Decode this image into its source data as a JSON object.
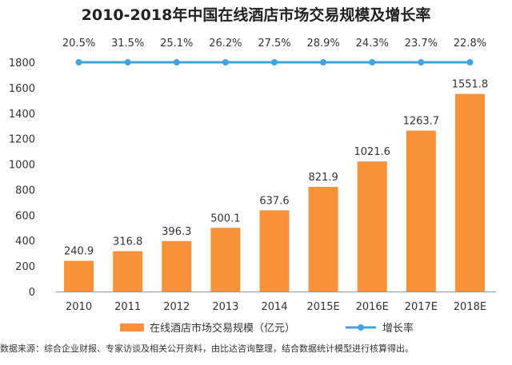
{
  "title": "2010-2018年中国在线酒店市场交易规模及增长率",
  "source": "数据来源：综合企业财报、专家访谈及相关公开资料，由比达咨询整理，结合数据统计模型进行核算得出。",
  "colors": {
    "bar": "#f7923a",
    "line": "#3fa4df",
    "axis": "#999999",
    "text": "#333333"
  },
  "chart_data": {
    "type": "bar",
    "categories": [
      "2010",
      "2011",
      "2012",
      "2013",
      "2014",
      "2015E",
      "2016E",
      "2017E",
      "2018E"
    ],
    "series": [
      {
        "name": "在线酒店市场交易规模（亿元）",
        "type": "bar",
        "values": [
          240.9,
          316.8,
          396.3,
          500.1,
          637.6,
          821.9,
          1021.6,
          1263.7,
          1551.8
        ]
      },
      {
        "name": "增长率",
        "type": "line",
        "values": [
          "20.5%",
          "31.5%",
          "25.1%",
          "26.2%",
          "27.5%",
          "28.9%",
          "24.3%",
          "23.7%",
          "22.8%"
        ]
      }
    ],
    "ylim": [
      0,
      1800
    ],
    "yticks": [
      "0",
      "200",
      "400",
      "600",
      "800",
      "1000",
      "1200",
      "1400",
      "1600",
      "1800"
    ],
    "grid": false,
    "legend_position": "bottom"
  }
}
